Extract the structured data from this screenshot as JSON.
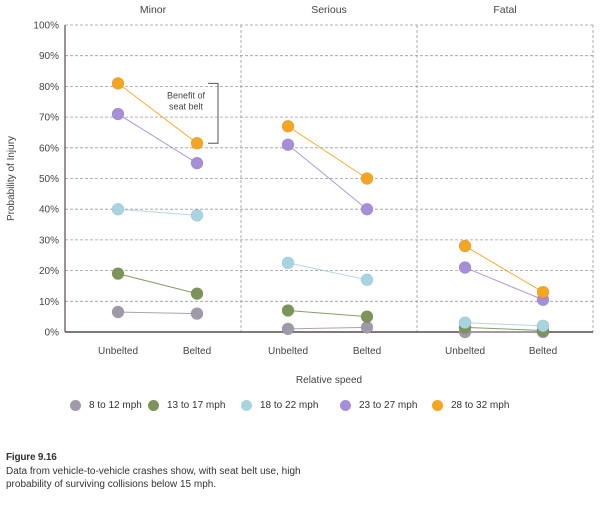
{
  "chart_data": {
    "type": "line",
    "title": "",
    "panels": [
      {
        "name": "Minor"
      },
      {
        "name": "Serious"
      },
      {
        "name": "Fatal"
      }
    ],
    "categories": [
      "Unbelted",
      "Belted"
    ],
    "xlabel": "Relative speed",
    "ylabel": "Probability of Injury",
    "ylim": [
      0,
      100
    ],
    "yticks": [
      "0%",
      "10%",
      "20%",
      "30%",
      "40%",
      "50%",
      "60%",
      "70%",
      "80%",
      "90%",
      "100%"
    ],
    "grid": true,
    "legend_position": "bottom",
    "series": [
      {
        "name": "8 to 12 mph",
        "color": "#a09aa8",
        "values": {
          "Minor": [
            6.5,
            6
          ],
          "Serious": [
            1,
            1.5
          ],
          "Fatal": [
            0,
            0
          ]
        }
      },
      {
        "name": "13 to 17 mph",
        "color": "#7d9458",
        "values": {
          "Minor": [
            19,
            12.5
          ],
          "Serious": [
            7,
            5
          ],
          "Fatal": [
            1.5,
            0.5
          ]
        }
      },
      {
        "name": "18 to 22 mph",
        "color": "#a8d4e2",
        "values": {
          "Minor": [
            40,
            38
          ],
          "Serious": [
            22.5,
            17
          ],
          "Fatal": [
            3,
            2
          ]
        }
      },
      {
        "name": "23 to 27 mph",
        "color": "#a68fd8",
        "values": {
          "Minor": [
            71,
            55
          ],
          "Serious": [
            61,
            40
          ],
          "Fatal": [
            21,
            10.5
          ]
        }
      },
      {
        "name": "28 to 32 mph",
        "color": "#f5a51f",
        "values": {
          "Minor": [
            81,
            61.5
          ],
          "Serious": [
            67,
            50
          ],
          "Fatal": [
            28,
            13
          ]
        }
      }
    ],
    "annotations": [
      {
        "panel": "Minor",
        "text_lines": [
          "Benefit of",
          "seat belt"
        ],
        "type": "bracket",
        "range": [
          61.5,
          81
        ]
      }
    ]
  },
  "caption": {
    "figure_label": "Figure 9.16",
    "text": "Data from vehicle-to-vehicle crashes show, with seat belt use, high probability of surviving collisions below 15 mph."
  }
}
